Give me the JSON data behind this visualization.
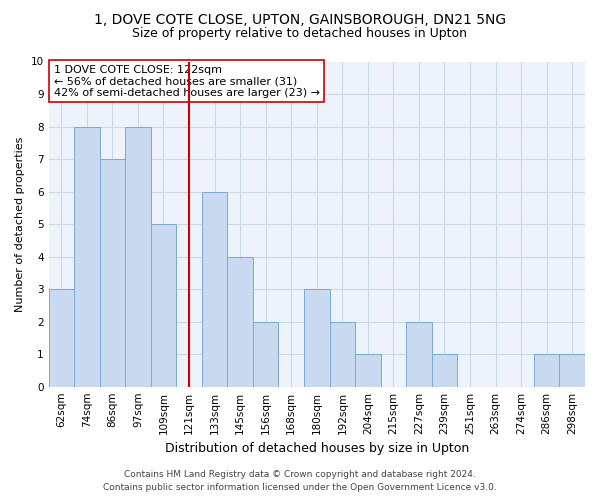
{
  "title": "1, DOVE COTE CLOSE, UPTON, GAINSBOROUGH, DN21 5NG",
  "subtitle": "Size of property relative to detached houses in Upton",
  "xlabel": "Distribution of detached houses by size in Upton",
  "ylabel": "Number of detached properties",
  "bar_labels": [
    "62sqm",
    "74sqm",
    "86sqm",
    "97sqm",
    "109sqm",
    "121sqm",
    "133sqm",
    "145sqm",
    "156sqm",
    "168sqm",
    "180sqm",
    "192sqm",
    "204sqm",
    "215sqm",
    "227sqm",
    "239sqm",
    "251sqm",
    "263sqm",
    "274sqm",
    "286sqm",
    "298sqm"
  ],
  "bar_heights": [
    3,
    8,
    7,
    8,
    5,
    0,
    6,
    4,
    2,
    0,
    3,
    2,
    1,
    0,
    2,
    1,
    0,
    0,
    0,
    1,
    1
  ],
  "bar_color": "#c8d9f0",
  "bar_edgecolor": "#7aaad0",
  "ref_line_x_label": "121sqm",
  "ref_line_color": "#cc0000",
  "annotation_text": "1 DOVE COTE CLOSE: 122sqm\n← 56% of detached houses are smaller (31)\n42% of semi-detached houses are larger (23) →",
  "annotation_box_edgecolor": "#cc0000",
  "ylim": [
    0,
    10
  ],
  "yticks": [
    0,
    1,
    2,
    3,
    4,
    5,
    6,
    7,
    8,
    9,
    10
  ],
  "footer_line1": "Contains HM Land Registry data © Crown copyright and database right 2024.",
  "footer_line2": "Contains public sector information licensed under the Open Government Licence v3.0.",
  "grid_color": "#c8d8e8",
  "background_color": "#eef2fa",
  "title_fontsize": 10,
  "subtitle_fontsize": 9,
  "xlabel_fontsize": 9,
  "ylabel_fontsize": 8,
  "tick_fontsize": 7.5,
  "annotation_fontsize": 8,
  "footer_fontsize": 6.5
}
